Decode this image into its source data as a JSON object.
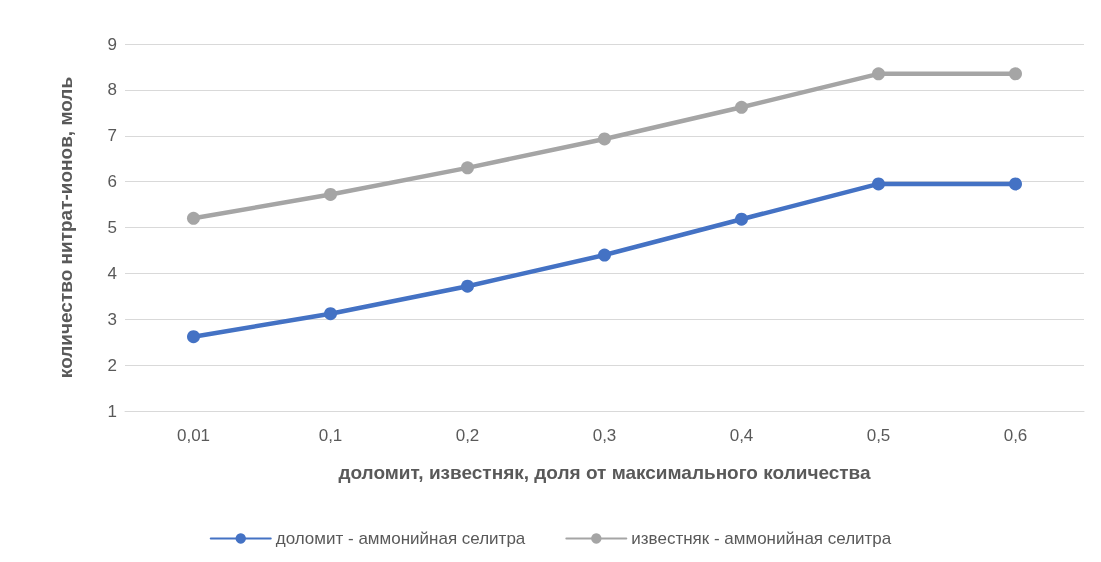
{
  "chart_data": {
    "type": "line",
    "xlabel": "доломит, известняк, доля от максимального количества",
    "ylabel": "количество нитрат-ионов, моль",
    "categories": [
      "0,01",
      "0,1",
      "0,2",
      "0,3",
      "0,4",
      "0,5",
      "0,6"
    ],
    "series": [
      {
        "name": "доломит - аммонийная селитра",
        "color": "#4472c4",
        "values": [
          2.62,
          3.12,
          3.72,
          4.4,
          5.18,
          5.95,
          5.95
        ]
      },
      {
        "name": "известняк - аммонийная селитра",
        "color": "#a5a5a5",
        "values": [
          5.2,
          5.72,
          6.3,
          6.93,
          7.62,
          8.35,
          8.35
        ]
      }
    ],
    "ylim": [
      1,
      9
    ],
    "yticks": [
      1,
      2,
      3,
      4,
      5,
      6,
      7,
      8,
      9
    ],
    "grid": "y",
    "legend": "bottom",
    "marker": "circle",
    "line_style": "solid"
  }
}
